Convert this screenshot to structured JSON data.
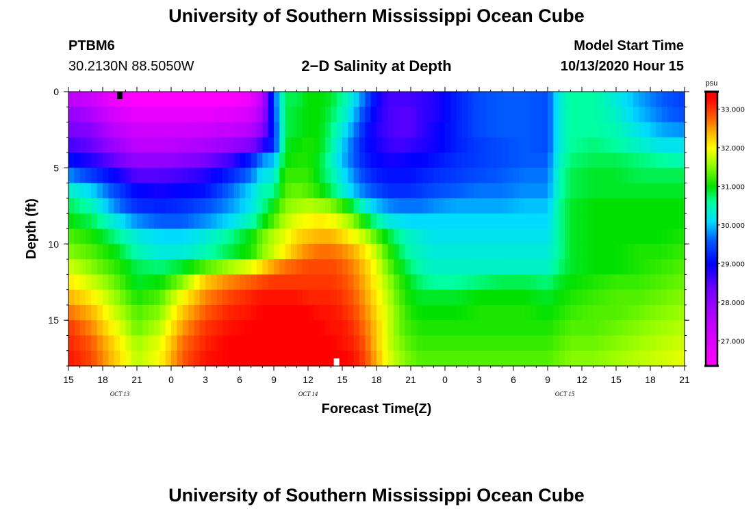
{
  "page": {
    "title_top": "University of Southern Mississippi Ocean Cube",
    "title_bottom": "University of Southern Mississippi Ocean Cube",
    "station_id": "PTBM6",
    "station_coords": "30.2130N 88.5050W",
    "plot_title": "2−D Salinity at Depth",
    "model_start_label": "Model Start Time",
    "model_start_value": "10/13/2020 Hour 15"
  },
  "chart_data": {
    "type": "heatmap",
    "title": "2-D Salinity at Depth",
    "xlabel": "Forecast Time(Z)",
    "ylabel": "Depth (ft)",
    "xlim": [
      0,
      54
    ],
    "ylim": [
      0,
      18
    ],
    "x_ticks": [
      {
        "v": 0,
        "label": "15"
      },
      {
        "v": 3,
        "label": "18"
      },
      {
        "v": 6,
        "label": "21"
      },
      {
        "v": 9,
        "label": "0"
      },
      {
        "v": 12,
        "label": "3"
      },
      {
        "v": 15,
        "label": "6"
      },
      {
        "v": 18,
        "label": "9"
      },
      {
        "v": 21,
        "label": "12"
      },
      {
        "v": 24,
        "label": "15"
      },
      {
        "v": 27,
        "label": "18"
      },
      {
        "v": 30,
        "label": "21"
      },
      {
        "v": 33,
        "label": "0"
      },
      {
        "v": 36,
        "label": "3"
      },
      {
        "v": 39,
        "label": "6"
      },
      {
        "v": 42,
        "label": "9"
      },
      {
        "v": 45,
        "label": "12"
      },
      {
        "v": 48,
        "label": "15"
      },
      {
        "v": 51,
        "label": "18"
      },
      {
        "v": 54,
        "label": "21"
      }
    ],
    "date_labels": [
      {
        "v": 4.5,
        "label": "OCT 13"
      },
      {
        "v": 21,
        "label": "OCT 14"
      },
      {
        "v": 43.5,
        "label": "OCT 15"
      }
    ],
    "y_ticks": [
      {
        "v": 0,
        "label": "0"
      },
      {
        "v": 5,
        "label": "5"
      },
      {
        "v": 10,
        "label": "10"
      },
      {
        "v": 15,
        "label": "15"
      }
    ],
    "markers": [
      {
        "name": "surface-marker",
        "x": 4.5,
        "y": 0,
        "color": "#000000"
      },
      {
        "name": "bottom-marker",
        "x": 23.5,
        "y": 18,
        "color": "#ffffff"
      }
    ],
    "colorbar": {
      "units": "psu",
      "min": 26.35,
      "max": 33.45,
      "ticks": [
        "27.000",
        "28.000",
        "29.000",
        "30.000",
        "31.000",
        "32.000",
        "33.000"
      ],
      "tick_values": [
        27,
        28,
        29,
        30,
        31,
        32,
        33
      ]
    },
    "depth_rows": [
      0.5,
      1.5,
      2.5,
      3.5,
      4.5,
      5.5,
      6.5,
      7.5,
      8.5,
      9.5,
      10.5,
      11.5,
      12.5,
      13.5,
      14.5,
      15.5,
      16.5,
      17.5
    ],
    "time_columns": [
      0,
      2,
      4,
      6,
      8,
      10,
      12,
      14,
      16,
      17,
      18,
      19,
      20,
      21,
      22,
      23,
      24,
      25,
      26,
      27,
      28,
      29,
      30,
      31,
      32,
      34,
      36,
      38,
      40,
      42,
      43,
      44,
      46,
      48,
      50,
      52,
      54
    ],
    "salinity_rows": [
      [
        27.5,
        27.3,
        26.7,
        26.4,
        26.4,
        26.4,
        26.4,
        26.4,
        26.7,
        27.5,
        29.5,
        30.8,
        30.8,
        31.0,
        31.0,
        30.9,
        30.6,
        30.2,
        29.6,
        29.0,
        28.6,
        28.6,
        28.6,
        28.7,
        28.8,
        29.2,
        29.5,
        29.6,
        29.6,
        29.5,
        30.3,
        30.6,
        30.6,
        30.3,
        29.9,
        29.6,
        29.4
      ],
      [
        28.0,
        27.7,
        27.1,
        26.8,
        26.8,
        26.8,
        26.8,
        26.9,
        27.1,
        27.8,
        29.4,
        30.8,
        30.9,
        31.0,
        31.0,
        30.8,
        30.5,
        30.0,
        29.4,
        28.9,
        28.6,
        28.5,
        28.5,
        28.7,
        28.8,
        29.2,
        29.5,
        29.6,
        29.6,
        29.5,
        30.3,
        30.6,
        30.6,
        30.4,
        30.0,
        29.7,
        29.5
      ],
      [
        28.3,
        28.1,
        27.5,
        27.2,
        27.2,
        27.2,
        27.3,
        27.4,
        27.6,
        28.1,
        29.3,
        30.8,
        30.9,
        31.0,
        31.0,
        30.7,
        30.3,
        29.8,
        29.2,
        28.8,
        28.6,
        28.5,
        28.5,
        28.7,
        28.9,
        29.2,
        29.5,
        29.6,
        29.6,
        29.5,
        30.3,
        30.6,
        30.6,
        30.5,
        30.2,
        29.9,
        29.8
      ],
      [
        28.6,
        28.4,
        27.9,
        27.5,
        27.5,
        27.6,
        27.7,
        27.9,
        28.2,
        28.7,
        29.3,
        30.9,
        31.0,
        31.1,
        31.0,
        30.6,
        30.1,
        29.6,
        29.1,
        28.9,
        28.7,
        28.6,
        28.7,
        28.8,
        28.9,
        29.2,
        29.4,
        29.5,
        29.6,
        29.5,
        30.3,
        30.6,
        30.7,
        30.6,
        30.4,
        30.2,
        30.2
      ],
      [
        29.1,
        28.8,
        28.4,
        28.0,
        28.0,
        28.1,
        28.3,
        28.6,
        29.2,
        29.8,
        30.0,
        31.0,
        31.1,
        31.1,
        30.9,
        30.5,
        30.0,
        29.6,
        29.2,
        29.0,
        28.9,
        28.9,
        29.0,
        29.0,
        29.1,
        29.3,
        29.4,
        29.5,
        29.6,
        29.6,
        30.4,
        30.7,
        30.8,
        30.8,
        30.7,
        30.6,
        30.5
      ],
      [
        29.8,
        29.4,
        29.0,
        28.5,
        28.5,
        28.6,
        28.8,
        29.2,
        29.7,
        30.2,
        30.3,
        31.2,
        31.2,
        31.2,
        30.9,
        30.6,
        30.2,
        29.8,
        29.4,
        29.2,
        29.1,
        29.1,
        29.1,
        29.2,
        29.3,
        29.4,
        29.5,
        29.6,
        29.7,
        29.7,
        30.5,
        30.8,
        30.9,
        30.9,
        30.8,
        30.8,
        30.8
      ],
      [
        30.4,
        30.1,
        29.5,
        29.0,
        28.9,
        29.0,
        29.1,
        29.6,
        30.1,
        30.5,
        30.6,
        31.3,
        31.4,
        31.3,
        31.1,
        30.8,
        30.4,
        30.0,
        29.7,
        29.5,
        29.3,
        29.3,
        29.3,
        29.4,
        29.5,
        29.6,
        29.7,
        29.7,
        29.8,
        29.8,
        30.5,
        30.8,
        30.9,
        30.9,
        30.9,
        30.9,
        30.9
      ],
      [
        30.8,
        30.5,
        29.8,
        29.3,
        29.2,
        29.3,
        29.5,
        29.8,
        30.2,
        30.6,
        31.0,
        31.5,
        31.6,
        31.7,
        31.6,
        31.5,
        31.2,
        30.8,
        30.3,
        30.0,
        29.8,
        29.7,
        29.7,
        29.7,
        29.8,
        29.9,
        29.9,
        29.9,
        30.0,
        30.0,
        30.6,
        30.9,
        31.0,
        31.0,
        31.0,
        31.0,
        31.0
      ],
      [
        31.0,
        30.8,
        30.3,
        29.8,
        29.6,
        29.6,
        29.8,
        30.1,
        30.5,
        30.9,
        31.3,
        31.7,
        31.9,
        32.0,
        32.1,
        32.0,
        31.8,
        31.5,
        31.0,
        30.6,
        30.3,
        30.2,
        30.1,
        30.1,
        30.1,
        30.1,
        30.1,
        30.1,
        30.1,
        30.1,
        30.6,
        30.9,
        31.0,
        31.0,
        31.0,
        31.0,
        31.0
      ],
      [
        31.3,
        31.1,
        30.7,
        30.3,
        30.1,
        30.1,
        30.3,
        30.6,
        31.0,
        31.4,
        31.7,
        31.9,
        32.2,
        32.3,
        32.4,
        32.4,
        32.2,
        32.0,
        31.7,
        31.3,
        30.9,
        30.6,
        30.4,
        30.3,
        30.2,
        30.2,
        30.2,
        30.2,
        30.2,
        30.2,
        30.6,
        30.9,
        31.0,
        31.0,
        31.0,
        31.0,
        31.1
      ],
      [
        31.5,
        31.3,
        31.0,
        30.5,
        30.3,
        30.3,
        30.5,
        30.8,
        31.1,
        31.5,
        31.8,
        32.1,
        32.4,
        32.6,
        32.7,
        32.7,
        32.6,
        32.4,
        32.1,
        31.7,
        31.2,
        30.8,
        30.5,
        30.4,
        30.3,
        30.3,
        30.3,
        30.3,
        30.3,
        30.3,
        30.6,
        30.9,
        31.0,
        31.0,
        31.1,
        31.1,
        31.2
      ],
      [
        31.8,
        31.5,
        31.2,
        30.8,
        30.7,
        30.9,
        31.3,
        31.6,
        31.9,
        32.2,
        32.5,
        32.7,
        32.8,
        32.9,
        32.9,
        32.9,
        32.8,
        32.6,
        32.3,
        31.9,
        31.4,
        31.0,
        30.7,
        30.5,
        30.4,
        30.4,
        30.4,
        30.4,
        30.4,
        30.4,
        30.7,
        30.9,
        31.0,
        31.0,
        31.1,
        31.2,
        31.3
      ],
      [
        32.1,
        31.8,
        31.4,
        30.9,
        31.0,
        31.5,
        32.3,
        32.6,
        32.8,
        32.9,
        33.0,
        33.0,
        33.0,
        33.0,
        33.0,
        33.0,
        32.9,
        32.7,
        32.4,
        32.0,
        31.6,
        31.2,
        30.9,
        30.7,
        30.6,
        30.6,
        30.7,
        30.8,
        30.8,
        30.7,
        30.9,
        31.0,
        31.1,
        31.2,
        31.2,
        31.3,
        31.4
      ],
      [
        32.4,
        32.1,
        31.6,
        31.1,
        31.3,
        32.0,
        32.6,
        32.9,
        33.1,
        33.2,
        33.2,
        33.2,
        33.2,
        33.1,
        33.1,
        33.1,
        33.0,
        32.8,
        32.5,
        32.1,
        31.7,
        31.3,
        31.0,
        30.9,
        30.9,
        30.9,
        31.0,
        31.0,
        31.0,
        30.9,
        31.0,
        31.1,
        31.2,
        31.3,
        31.3,
        31.4,
        31.5
      ],
      [
        32.7,
        32.4,
        31.8,
        31.3,
        31.5,
        32.3,
        32.8,
        33.1,
        33.2,
        33.3,
        33.3,
        33.3,
        33.3,
        33.3,
        33.2,
        33.2,
        33.1,
        32.9,
        32.6,
        32.2,
        31.8,
        31.4,
        31.1,
        31.0,
        31.0,
        31.0,
        31.1,
        31.1,
        31.1,
        31.0,
        31.1,
        31.2,
        31.3,
        31.3,
        31.4,
        31.5,
        31.6
      ],
      [
        33.0,
        32.6,
        32.0,
        31.4,
        31.7,
        32.5,
        33.0,
        33.2,
        33.3,
        33.3,
        33.3,
        33.3,
        33.3,
        33.3,
        33.3,
        33.2,
        33.2,
        33.0,
        32.7,
        32.3,
        31.8,
        31.4,
        31.2,
        31.1,
        31.1,
        31.1,
        31.1,
        31.1,
        31.1,
        31.1,
        31.2,
        31.3,
        31.3,
        31.4,
        31.5,
        31.6,
        31.7
      ],
      [
        33.1,
        32.8,
        32.2,
        31.6,
        31.9,
        32.7,
        33.1,
        33.3,
        33.3,
        33.4,
        33.4,
        33.4,
        33.4,
        33.3,
        33.3,
        33.3,
        33.2,
        33.1,
        32.8,
        32.3,
        31.8,
        31.5,
        31.3,
        31.2,
        31.2,
        31.2,
        31.2,
        31.2,
        31.2,
        31.2,
        31.3,
        31.4,
        31.4,
        31.5,
        31.6,
        31.7,
        31.8
      ],
      [
        33.2,
        32.9,
        32.3,
        31.7,
        32.0,
        32.8,
        33.2,
        33.3,
        33.4,
        33.4,
        33.4,
        33.4,
        33.4,
        33.4,
        33.4,
        33.3,
        33.3,
        33.2,
        32.9,
        32.4,
        31.9,
        31.6,
        31.4,
        31.3,
        31.3,
        31.3,
        31.3,
        31.3,
        31.3,
        31.3,
        31.4,
        31.5,
        31.5,
        31.6,
        31.7,
        31.8,
        31.9
      ]
    ]
  }
}
